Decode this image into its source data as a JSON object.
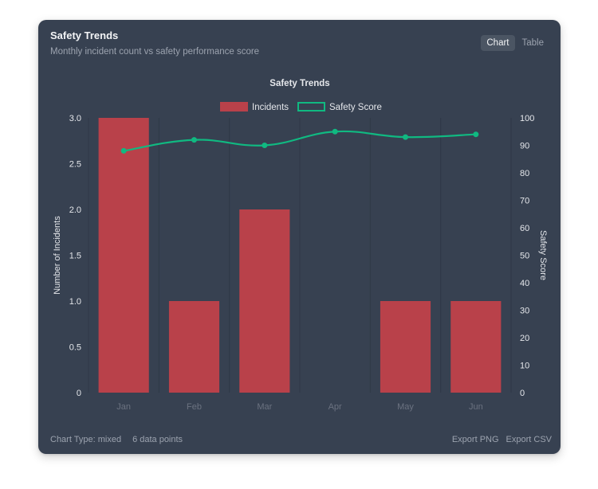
{
  "card": {
    "title": "Safety Trends",
    "subtitle": "Monthly incident count vs safety performance score"
  },
  "view_toggle": {
    "chart_label": "Chart",
    "table_label": "Table",
    "selected": "Chart"
  },
  "footer": {
    "chart_type": "Chart Type: mixed",
    "data_points": "6 data points",
    "export_png": "Export PNG",
    "export_csv": "Export CSV"
  },
  "colors": {
    "bar": "#b9414a",
    "line": "#10b981",
    "grid": "#2f3846",
    "text": "#e5e7eb",
    "muted": "#6b7280"
  },
  "chart_data": {
    "type": "bar",
    "title": "Safety Trends",
    "categories": [
      "Jan",
      "Feb",
      "Mar",
      "Apr",
      "May",
      "Jun"
    ],
    "series": [
      {
        "name": "Incidents",
        "type": "bar",
        "axis": "left",
        "values": [
          3,
          1,
          2,
          0,
          1,
          1
        ]
      },
      {
        "name": "Safety Score",
        "type": "line",
        "axis": "right",
        "values": [
          88,
          92,
          90,
          95,
          93,
          94
        ]
      }
    ],
    "ylabel": "Number of Incidents",
    "y2label": "Safety Score",
    "ylim": [
      0,
      3
    ],
    "y2lim": [
      0,
      100
    ],
    "yticks": [
      "0",
      "0.5",
      "1.0",
      "1.5",
      "2.0",
      "2.5",
      "3.0"
    ],
    "y2ticks": [
      "0",
      "10",
      "20",
      "30",
      "40",
      "50",
      "60",
      "70",
      "80",
      "90",
      "100"
    ],
    "legend": [
      "Incidents",
      "Safety Score"
    ],
    "legend_position": "top-center",
    "grid": "vertical"
  }
}
